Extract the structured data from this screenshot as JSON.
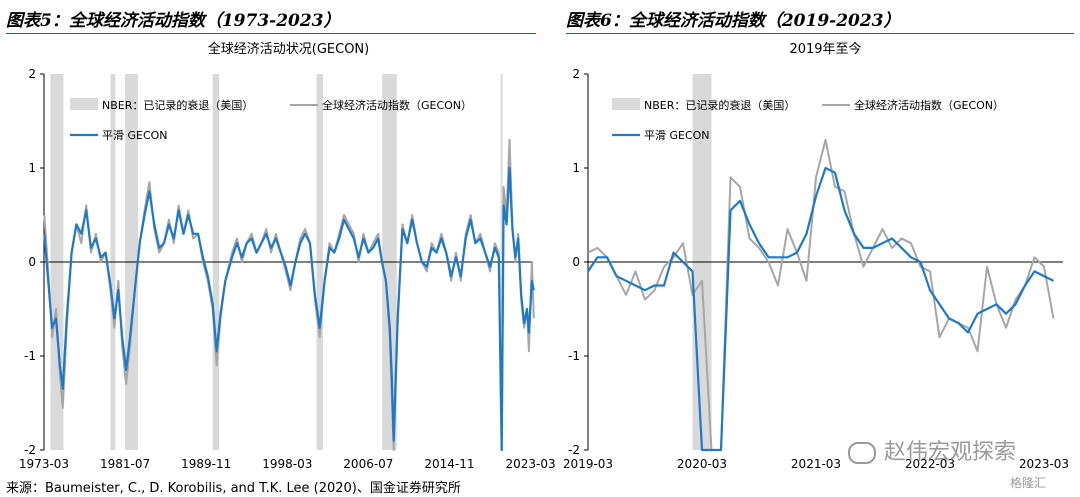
{
  "header": {
    "left_title": "图表5：全球经济活动指数（1973-2023）",
    "right_title": "图表6：全球经济活动指数（2019-2023）"
  },
  "source": "来源：Baumeister, C., D. Korobilis, and T.K. Lee (2020)、国金证券研究所",
  "watermark": "赵伟宏观探索",
  "logo": "格隆汇",
  "colors": {
    "gecon": "#a6a6a6",
    "smoothed": "#1f78c8",
    "recession": "#d9d9d9",
    "rule": "#1f5aa8"
  },
  "chart_data": [
    {
      "type": "line",
      "title": "全球经济活动状况(GECON)",
      "ylim": [
        -2,
        2
      ],
      "yticks": [
        2,
        1,
        0,
        -1,
        -2
      ],
      "x_range": [
        "1973-03",
        "2023-06"
      ],
      "xticks": [
        "1973-03",
        "1981-07",
        "1989-11",
        "1998-03",
        "2006-07",
        "2014-11",
        "2023-03"
      ],
      "legend": [
        "NBER：已记录的衰退（美国）",
        "全球经济活动指数（GECON）",
        "平滑 GECON"
      ],
      "recessions": [
        [
          "1973-11",
          "1975-03"
        ],
        [
          "1980-01",
          "1980-07"
        ],
        [
          "1981-07",
          "1982-11"
        ],
        [
          "1990-07",
          "1991-03"
        ],
        [
          "2001-03",
          "2001-11"
        ],
        [
          "2007-12",
          "2009-06"
        ],
        [
          "2020-02",
          "2020-04"
        ]
      ],
      "series": [
        {
          "name": "全球经济活动指数（GECON）",
          "x": [
            1973.2,
            1973.6,
            1974.0,
            1974.4,
            1974.8,
            1975.1,
            1975.5,
            1976.0,
            1976.5,
            1977.0,
            1977.5,
            1978.0,
            1978.5,
            1979.0,
            1979.5,
            1980.0,
            1980.4,
            1980.8,
            1981.2,
            1981.6,
            1982.0,
            1982.5,
            1983.0,
            1983.5,
            1984.0,
            1984.5,
            1985.0,
            1985.5,
            1986.0,
            1986.5,
            1987.0,
            1987.5,
            1988.0,
            1988.5,
            1989.0,
            1989.5,
            1990.0,
            1990.5,
            1990.9,
            1991.3,
            1991.8,
            1992.5,
            1993.0,
            1993.5,
            1994.0,
            1994.5,
            1995.0,
            1995.5,
            1996.0,
            1996.5,
            1997.0,
            1997.5,
            1998.0,
            1998.5,
            1999.0,
            1999.5,
            2000.0,
            2000.5,
            2001.0,
            2001.5,
            2002.0,
            2002.5,
            2003.0,
            2003.5,
            2004.0,
            2004.5,
            2005.0,
            2005.5,
            2006.0,
            2006.5,
            2007.0,
            2007.5,
            2007.9,
            2008.3,
            2008.7,
            2008.9,
            2009.1,
            2009.5,
            2010.0,
            2010.5,
            2011.0,
            2011.5,
            2012.0,
            2012.5,
            2013.0,
            2013.5,
            2014.0,
            2014.5,
            2015.0,
            2015.5,
            2016.0,
            2016.5,
            2017.0,
            2017.5,
            2018.0,
            2018.5,
            2019.0,
            2019.5,
            2019.9,
            2020.2,
            2020.4,
            2020.7,
            2021.0,
            2021.3,
            2021.6,
            2021.9,
            2022.2,
            2022.5,
            2022.8,
            2023.0,
            2023.3,
            2023.5
          ],
          "values": [
            0.5,
            -0.1,
            -0.8,
            -0.5,
            -1.2,
            -1.55,
            -0.7,
            0.1,
            0.4,
            0.2,
            0.6,
            0.1,
            0.3,
            0.0,
            0.1,
            -0.3,
            -0.7,
            -0.2,
            -0.9,
            -1.3,
            -0.9,
            -0.3,
            0.2,
            0.55,
            0.85,
            0.35,
            0.1,
            0.2,
            0.45,
            0.2,
            0.6,
            0.3,
            0.55,
            0.25,
            0.3,
            0.0,
            -0.2,
            -0.5,
            -1.1,
            -0.6,
            -0.2,
            0.1,
            0.25,
            0.0,
            0.2,
            0.3,
            0.1,
            0.2,
            0.35,
            0.1,
            0.3,
            0.1,
            -0.1,
            -0.3,
            0.0,
            0.25,
            0.35,
            0.2,
            -0.4,
            -0.8,
            -0.2,
            0.2,
            0.1,
            0.3,
            0.5,
            0.4,
            0.3,
            0.0,
            0.3,
            0.1,
            0.2,
            0.3,
            0.0,
            -0.2,
            -0.8,
            -1.4,
            -2.0,
            -0.7,
            0.4,
            0.2,
            0.5,
            0.2,
            0.0,
            -0.1,
            0.2,
            0.1,
            0.3,
            0.1,
            -0.2,
            0.1,
            -0.2,
            0.3,
            0.5,
            0.2,
            0.3,
            0.1,
            -0.1,
            0.2,
            0.1,
            -2.0,
            0.8,
            0.5,
            1.3,
            0.4,
            0.0,
            0.3,
            -0.4,
            -0.7,
            -0.5,
            -0.95,
            0.0,
            -0.6
          ]
        },
        {
          "name": "平滑 GECON",
          "x": [
            1973.2,
            1973.6,
            1974.0,
            1974.4,
            1974.8,
            1975.1,
            1975.5,
            1976.0,
            1976.5,
            1977.0,
            1977.5,
            1978.0,
            1978.5,
            1979.0,
            1979.5,
            1980.0,
            1980.4,
            1980.8,
            1981.2,
            1981.6,
            1982.0,
            1982.5,
            1983.0,
            1983.5,
            1984.0,
            1984.5,
            1985.0,
            1985.5,
            1986.0,
            1986.5,
            1987.0,
            1987.5,
            1988.0,
            1988.5,
            1989.0,
            1989.5,
            1990.0,
            1990.5,
            1990.9,
            1991.3,
            1991.8,
            1992.5,
            1993.0,
            1993.5,
            1994.0,
            1994.5,
            1995.0,
            1995.5,
            1996.0,
            1996.5,
            1997.0,
            1997.5,
            1998.0,
            1998.5,
            1999.0,
            1999.5,
            2000.0,
            2000.5,
            2001.0,
            2001.5,
            2002.0,
            2002.5,
            2003.0,
            2003.5,
            2004.0,
            2004.5,
            2005.0,
            2005.5,
            2006.0,
            2006.5,
            2007.0,
            2007.5,
            2007.9,
            2008.3,
            2008.7,
            2008.9,
            2009.1,
            2009.5,
            2010.0,
            2010.5,
            2011.0,
            2011.5,
            2012.0,
            2012.5,
            2013.0,
            2013.5,
            2014.0,
            2014.5,
            2015.0,
            2015.5,
            2016.0,
            2016.5,
            2017.0,
            2017.5,
            2018.0,
            2018.5,
            2019.0,
            2019.5,
            2019.9,
            2020.2,
            2020.4,
            2020.7,
            2021.0,
            2021.3,
            2021.6,
            2021.9,
            2022.2,
            2022.5,
            2022.8,
            2023.0,
            2023.3,
            2023.5
          ],
          "values": [
            0.3,
            -0.2,
            -0.7,
            -0.6,
            -1.1,
            -1.35,
            -0.6,
            0.1,
            0.4,
            0.3,
            0.55,
            0.15,
            0.25,
            0.05,
            0.1,
            -0.25,
            -0.6,
            -0.3,
            -0.8,
            -1.15,
            -0.8,
            -0.3,
            0.2,
            0.5,
            0.75,
            0.4,
            0.15,
            0.2,
            0.4,
            0.25,
            0.55,
            0.3,
            0.5,
            0.3,
            0.3,
            0.05,
            -0.15,
            -0.45,
            -0.95,
            -0.55,
            -0.2,
            0.05,
            0.2,
            0.05,
            0.2,
            0.25,
            0.1,
            0.2,
            0.3,
            0.15,
            0.25,
            0.1,
            -0.05,
            -0.25,
            0.0,
            0.2,
            0.3,
            0.2,
            -0.35,
            -0.7,
            -0.2,
            0.15,
            0.1,
            0.25,
            0.45,
            0.35,
            0.25,
            0.05,
            0.25,
            0.1,
            0.15,
            0.25,
            0.0,
            -0.2,
            -0.7,
            -1.2,
            -1.9,
            -0.6,
            0.35,
            0.2,
            0.45,
            0.2,
            0.0,
            -0.05,
            0.15,
            0.1,
            0.25,
            0.1,
            -0.15,
            0.05,
            -0.15,
            0.25,
            0.45,
            0.2,
            0.25,
            0.1,
            -0.05,
            0.15,
            0.05,
            -2.0,
            0.6,
            0.4,
            1.0,
            0.35,
            0.05,
            0.25,
            -0.35,
            -0.65,
            -0.5,
            -0.75,
            -0.2,
            -0.3
          ]
        }
      ]
    },
    {
      "type": "line",
      "title": "2019年至今",
      "ylim": [
        -2,
        2
      ],
      "yticks": [
        2,
        1,
        0,
        -1,
        -2
      ],
      "x_range": [
        "2019-03",
        "2023-05"
      ],
      "xticks": [
        "2019-03",
        "2020-03",
        "2021-03",
        "2022-03",
        "2023-03"
      ],
      "legend": [
        "NBER：已记录的衰退（美国）",
        "全球经济活动指数（GECON）",
        "平滑 GECON"
      ],
      "recessions": [
        [
          "2020-02",
          "2020-04"
        ]
      ],
      "series": [
        {
          "name": "全球经济活动指数（GECON）",
          "x": [
            "2019-03",
            "2019-04",
            "2019-05",
            "2019-06",
            "2019-07",
            "2019-08",
            "2019-09",
            "2019-10",
            "2019-11",
            "2019-12",
            "2020-01",
            "2020-02",
            "2020-03",
            "2020-04",
            "2020-05",
            "2020-06",
            "2020-07",
            "2020-08",
            "2020-09",
            "2020-10",
            "2020-11",
            "2020-12",
            "2021-01",
            "2021-02",
            "2021-03",
            "2021-04",
            "2021-05",
            "2021-06",
            "2021-07",
            "2021-08",
            "2021-09",
            "2021-10",
            "2021-11",
            "2021-12",
            "2022-01",
            "2022-02",
            "2022-03",
            "2022-04",
            "2022-05",
            "2022-06",
            "2022-07",
            "2022-08",
            "2022-09",
            "2022-10",
            "2022-11",
            "2022-12",
            "2023-01",
            "2023-02",
            "2023-03",
            "2023-04"
          ],
          "values": [
            0.1,
            0.15,
            0.05,
            -0.15,
            -0.35,
            -0.1,
            -0.4,
            -0.3,
            -0.05,
            0.05,
            0.2,
            -0.35,
            -0.2,
            -2.0,
            -2.0,
            0.9,
            0.8,
            0.25,
            0.15,
            0.0,
            -0.25,
            0.35,
            0.1,
            -0.2,
            0.9,
            1.3,
            0.8,
            0.75,
            0.3,
            -0.05,
            0.15,
            0.35,
            0.15,
            0.25,
            0.2,
            -0.05,
            -0.1,
            -0.8,
            -0.6,
            -0.65,
            -0.7,
            -0.95,
            -0.05,
            -0.45,
            -0.7,
            -0.4,
            -0.25,
            0.05,
            -0.05,
            -0.6
          ]
        },
        {
          "name": "平滑 GECON",
          "x": [
            "2019-03",
            "2019-04",
            "2019-05",
            "2019-06",
            "2019-07",
            "2019-08",
            "2019-09",
            "2019-10",
            "2019-11",
            "2019-12",
            "2020-01",
            "2020-02",
            "2020-03",
            "2020-04",
            "2020-05",
            "2020-06",
            "2020-07",
            "2020-08",
            "2020-09",
            "2020-10",
            "2020-11",
            "2020-12",
            "2021-01",
            "2021-02",
            "2021-03",
            "2021-04",
            "2021-05",
            "2021-06",
            "2021-07",
            "2021-08",
            "2021-09",
            "2021-10",
            "2021-11",
            "2021-12",
            "2022-01",
            "2022-02",
            "2022-03",
            "2022-04",
            "2022-05",
            "2022-06",
            "2022-07",
            "2022-08",
            "2022-09",
            "2022-10",
            "2022-11",
            "2022-12",
            "2023-01",
            "2023-02",
            "2023-03",
            "2023-04"
          ],
          "values": [
            -0.1,
            0.05,
            0.05,
            -0.15,
            -0.2,
            -0.25,
            -0.3,
            -0.25,
            -0.25,
            0.1,
            0.0,
            -0.1,
            -2.0,
            -2.0,
            -2.0,
            0.55,
            0.65,
            0.4,
            0.2,
            0.05,
            0.05,
            0.05,
            0.1,
            0.3,
            0.7,
            1.0,
            0.95,
            0.55,
            0.3,
            0.15,
            0.15,
            0.2,
            0.25,
            0.15,
            0.05,
            0.0,
            -0.3,
            -0.45,
            -0.6,
            -0.65,
            -0.75,
            -0.55,
            -0.5,
            -0.45,
            -0.55,
            -0.45,
            -0.25,
            -0.1,
            -0.15,
            -0.2
          ]
        }
      ]
    }
  ]
}
